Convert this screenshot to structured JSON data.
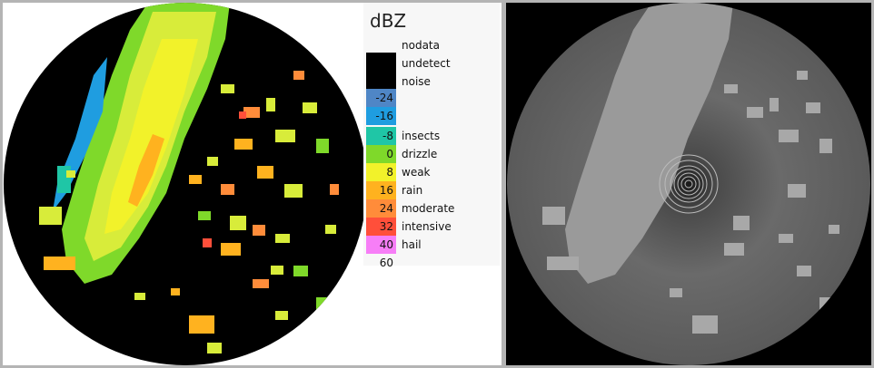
{
  "legend": {
    "title": "dBZ",
    "bins": [
      {
        "value": "",
        "label": "nodata",
        "color": "#ffffff"
      },
      {
        "value": "",
        "label": "undetect",
        "color": "#000000"
      },
      {
        "value": "",
        "label": "noise",
        "color": "#000000"
      },
      {
        "value": "",
        "label": "",
        "color": "#ffffff"
      },
      {
        "value": "-24",
        "label": "",
        "color": "#4f86c6"
      },
      {
        "value": "-16",
        "label": "",
        "color": "#1f9de0"
      },
      {
        "value": "-8",
        "label": "insects",
        "color": "#1fc6a6"
      },
      {
        "value": "0",
        "label": "drizzle",
        "color": "#7fd92a"
      },
      {
        "value": "8",
        "label": "weak",
        "color": "#f2f22a"
      },
      {
        "value": "16",
        "label": "rain",
        "color": "#ffb21f"
      },
      {
        "value": "24",
        "label": "moderate",
        "color": "#ff8c3a"
      },
      {
        "value": "32",
        "label": "intensive",
        "color": "#ff4f3a"
      },
      {
        "value": "40",
        "label": "hail",
        "color": "#f77ef7"
      },
      {
        "value": "60",
        "label": "",
        "color": "#ffffff"
      }
    ]
  }
}
